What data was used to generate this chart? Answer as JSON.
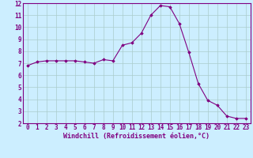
{
  "x": [
    0,
    1,
    2,
    3,
    4,
    5,
    6,
    7,
    8,
    9,
    10,
    11,
    12,
    13,
    14,
    15,
    16,
    17,
    18,
    19,
    20,
    21,
    22,
    23
  ],
  "y": [
    6.8,
    7.1,
    7.2,
    7.2,
    7.2,
    7.2,
    7.1,
    7.0,
    7.3,
    7.2,
    8.5,
    8.7,
    9.5,
    11.0,
    11.8,
    11.7,
    10.3,
    7.9,
    5.3,
    3.9,
    3.5,
    2.6,
    2.4,
    2.4
  ],
  "line_color": "#800080",
  "marker": "D",
  "marker_size": 1.8,
  "bg_color": "#cceeff",
  "grid_color": "#aacccc",
  "xlabel": "Windchill (Refroidissement éolien,°C)",
  "xlim": [
    -0.5,
    23.5
  ],
  "ylim": [
    2,
    12
  ],
  "xticks": [
    0,
    1,
    2,
    3,
    4,
    5,
    6,
    7,
    8,
    9,
    10,
    11,
    12,
    13,
    14,
    15,
    16,
    17,
    18,
    19,
    20,
    21,
    22,
    23
  ],
  "yticks": [
    2,
    3,
    4,
    5,
    6,
    7,
    8,
    9,
    10,
    11,
    12
  ],
  "tick_fontsize": 5.5,
  "label_fontsize": 6.0
}
